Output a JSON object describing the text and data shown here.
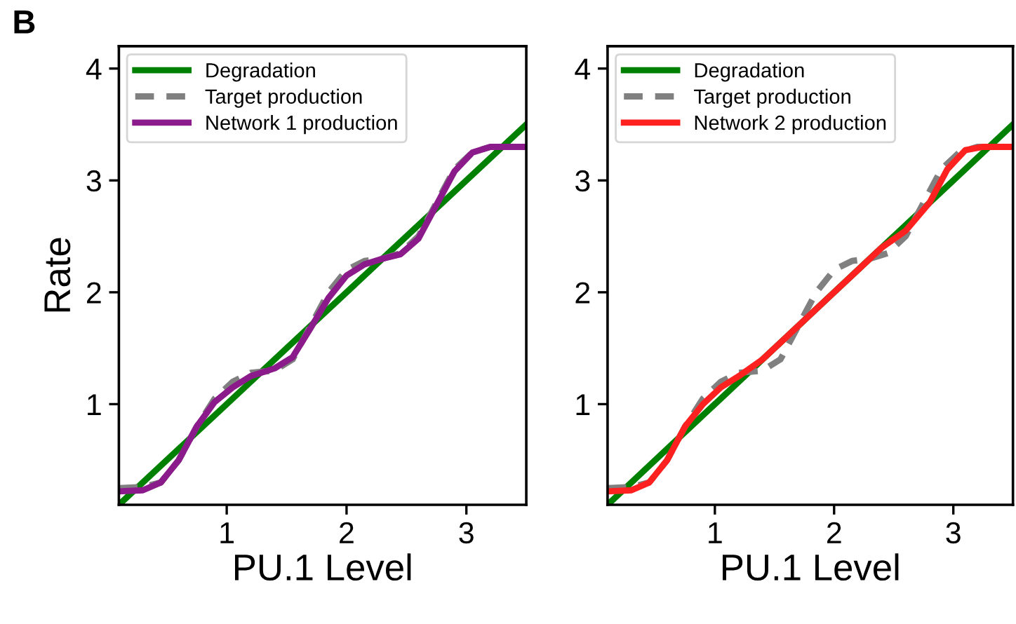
{
  "chart_data": [
    {
      "type": "line",
      "xlabel": "PU.1 Level",
      "ylabel": "Rate",
      "annotations": [
        "B"
      ],
      "xlim": [
        0.1,
        3.5
      ],
      "ylim": [
        0.1,
        4.2
      ],
      "xticks": [
        1,
        2,
        3
      ],
      "yticks": [
        1,
        2,
        3,
        4
      ],
      "legend": "top left",
      "grid": false,
      "series": [
        {
          "name": "Degradation",
          "color": "#008000",
          "line_style": "solid",
          "x": [
            0.1,
            3.5
          ],
          "values": [
            0.1,
            3.5
          ]
        },
        {
          "name": "Target production",
          "color": "#808080",
          "line_style": "dashed",
          "x": [
            0.1,
            0.3,
            0.45,
            0.6,
            0.75,
            0.9,
            1.05,
            1.2,
            1.4,
            1.55,
            1.7,
            1.85,
            2.0,
            2.15,
            2.3,
            2.45,
            2.6,
            2.75,
            2.9,
            3.05,
            3.2,
            3.35,
            3.5
          ],
          "values": [
            0.25,
            0.26,
            0.3,
            0.5,
            0.8,
            1.05,
            1.2,
            1.28,
            1.3,
            1.4,
            1.7,
            2.0,
            2.2,
            2.28,
            2.3,
            2.35,
            2.5,
            2.8,
            3.1,
            3.25,
            3.3,
            3.3,
            3.3
          ]
        },
        {
          "name": "Network 1 production",
          "color": "#8b1a8b",
          "line_style": "solid",
          "x": [
            0.1,
            0.3,
            0.45,
            0.6,
            0.75,
            0.9,
            1.05,
            1.2,
            1.4,
            1.55,
            1.7,
            1.85,
            2.0,
            2.15,
            2.3,
            2.45,
            2.6,
            2.75,
            2.9,
            3.05,
            3.2,
            3.35,
            3.5
          ],
          "values": [
            0.22,
            0.23,
            0.3,
            0.5,
            0.8,
            1.02,
            1.15,
            1.25,
            1.32,
            1.42,
            1.68,
            1.95,
            2.15,
            2.25,
            2.3,
            2.34,
            2.48,
            2.78,
            3.08,
            3.25,
            3.3,
            3.3,
            3.3
          ]
        }
      ]
    },
    {
      "type": "line",
      "xlabel": "PU.1 Level",
      "xlim": [
        0.1,
        3.5
      ],
      "ylim": [
        0.1,
        4.2
      ],
      "xticks": [
        1,
        2,
        3
      ],
      "yticks": [
        1,
        2,
        3,
        4
      ],
      "legend": "top left",
      "grid": false,
      "series": [
        {
          "name": "Degradation",
          "color": "#008000",
          "line_style": "solid",
          "x": [
            0.1,
            3.5
          ],
          "values": [
            0.1,
            3.5
          ]
        },
        {
          "name": "Target production",
          "color": "#808080",
          "line_style": "dashed",
          "x": [
            0.1,
            0.3,
            0.45,
            0.6,
            0.75,
            0.9,
            1.05,
            1.2,
            1.4,
            1.55,
            1.7,
            1.85,
            2.0,
            2.15,
            2.3,
            2.45,
            2.6,
            2.75,
            2.9,
            3.05,
            3.2,
            3.35,
            3.5
          ],
          "values": [
            0.25,
            0.26,
            0.3,
            0.5,
            0.8,
            1.05,
            1.2,
            1.28,
            1.3,
            1.4,
            1.7,
            2.0,
            2.2,
            2.28,
            2.3,
            2.35,
            2.5,
            2.8,
            3.1,
            3.25,
            3.3,
            3.3,
            3.3
          ]
        },
        {
          "name": "Network 2 production",
          "color": "#ff2020",
          "line_style": "solid",
          "x": [
            0.1,
            0.3,
            0.45,
            0.6,
            0.75,
            0.9,
            1.05,
            1.2,
            1.4,
            1.6,
            1.8,
            2.0,
            2.2,
            2.4,
            2.6,
            2.8,
            2.95,
            3.1,
            3.25,
            3.5
          ],
          "values": [
            0.22,
            0.23,
            0.3,
            0.5,
            0.8,
            1.0,
            1.15,
            1.25,
            1.4,
            1.6,
            1.8,
            2.0,
            2.2,
            2.4,
            2.55,
            2.8,
            3.1,
            3.27,
            3.3,
            3.3
          ]
        }
      ]
    }
  ]
}
